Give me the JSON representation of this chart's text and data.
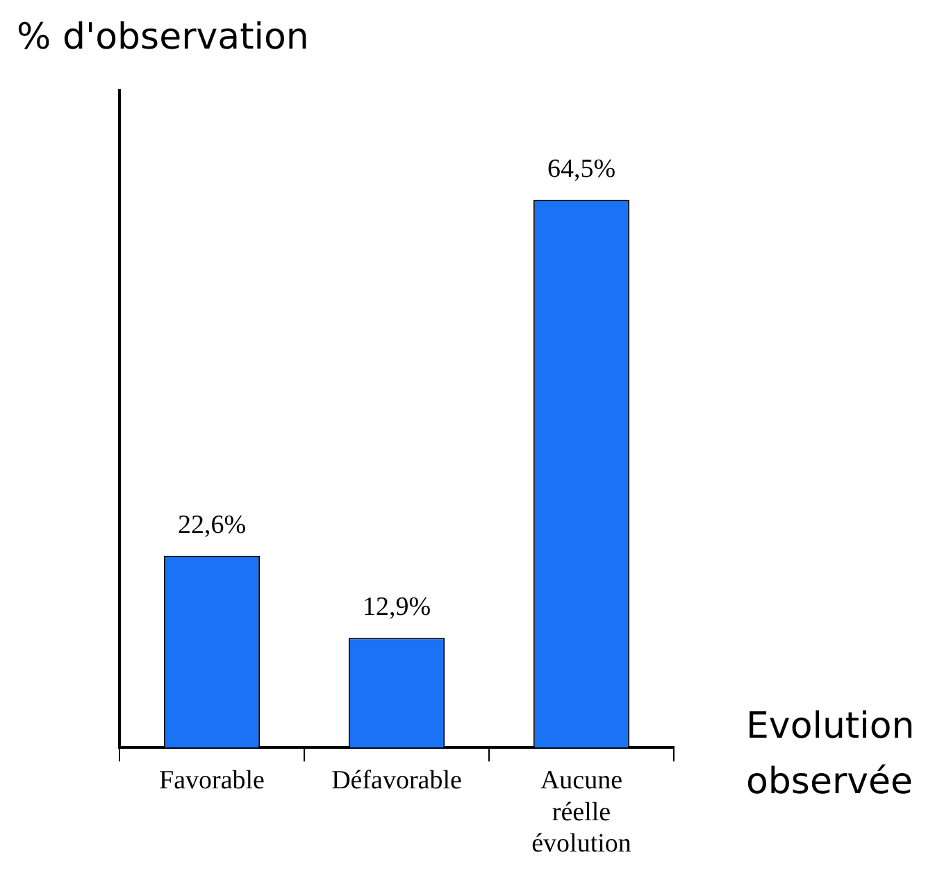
{
  "chart_data": {
    "type": "bar",
    "xlabel": "Evolution observée",
    "ylabel": "% d'observation",
    "categories": [
      "Favorable",
      "Défavorable",
      "Aucune réelle évolution"
    ],
    "values": [
      22.6,
      12.9,
      64.5
    ],
    "value_labels": [
      "22,6%",
      "12,9%",
      "64,5%"
    ],
    "color": "#1a72f5",
    "grid": false,
    "legend": false
  }
}
